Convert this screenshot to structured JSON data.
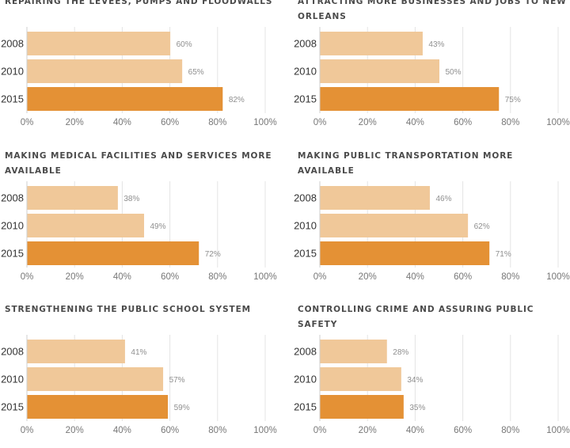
{
  "chart_data": [
    {
      "type": "bar",
      "orientation": "horizontal",
      "title": "REPAIRING THE LEVEES, PUMPS AND FLOODWALLS",
      "categories": [
        "2008",
        "2010",
        "2015"
      ],
      "values": [
        60,
        65,
        82
      ],
      "value_labels": [
        "60%",
        "65%",
        "82%"
      ],
      "xlim": [
        0,
        100
      ],
      "xticks": [
        "0%",
        "20%",
        "40%",
        "60%",
        "80%",
        "100%"
      ],
      "grid": true,
      "colors": [
        "#f0c899",
        "#f0c899",
        "#e49135"
      ]
    },
    {
      "type": "bar",
      "orientation": "horizontal",
      "title": "ATTRACTING MORE BUSINESSES AND JOBS TO NEW ORLEANS",
      "categories": [
        "2008",
        "2010",
        "2015"
      ],
      "values": [
        43,
        50,
        75
      ],
      "value_labels": [
        "43%",
        "50%",
        "75%"
      ],
      "xlim": [
        0,
        100
      ],
      "xticks": [
        "0%",
        "20%",
        "40%",
        "60%",
        "80%",
        "100%"
      ],
      "grid": true,
      "colors": [
        "#f0c899",
        "#f0c899",
        "#e49135"
      ]
    },
    {
      "type": "bar",
      "orientation": "horizontal",
      "title": "MAKING MEDICAL FACILITIES AND SERVICES MORE AVAILABLE",
      "categories": [
        "2008",
        "2010",
        "2015"
      ],
      "values": [
        38,
        49,
        72
      ],
      "value_labels": [
        "38%",
        "49%",
        "72%"
      ],
      "xlim": [
        0,
        100
      ],
      "xticks": [
        "0%",
        "20%",
        "40%",
        "60%",
        "80%",
        "100%"
      ],
      "grid": true,
      "colors": [
        "#f0c899",
        "#f0c899",
        "#e49135"
      ]
    },
    {
      "type": "bar",
      "orientation": "horizontal",
      "title": "MAKING PUBLIC TRANSPORTATION MORE AVAILABLE",
      "categories": [
        "2008",
        "2010",
        "2015"
      ],
      "values": [
        46,
        62,
        71
      ],
      "value_labels": [
        "46%",
        "62%",
        "71%"
      ],
      "xlim": [
        0,
        100
      ],
      "xticks": [
        "0%",
        "20%",
        "40%",
        "60%",
        "80%",
        "100%"
      ],
      "grid": true,
      "colors": [
        "#f0c899",
        "#f0c899",
        "#e49135"
      ]
    },
    {
      "type": "bar",
      "orientation": "horizontal",
      "title": "STRENGTHENING THE PUBLIC SCHOOL SYSTEM",
      "categories": [
        "2008",
        "2010",
        "2015"
      ],
      "values": [
        41,
        57,
        59
      ],
      "value_labels": [
        "41%",
        "57%",
        "59%"
      ],
      "xlim": [
        0,
        100
      ],
      "xticks": [
        "0%",
        "20%",
        "40%",
        "60%",
        "80%",
        "100%"
      ],
      "grid": true,
      "colors": [
        "#f0c899",
        "#f0c899",
        "#e49135"
      ]
    },
    {
      "type": "bar",
      "orientation": "horizontal",
      "title": "CONTROLLING CRIME AND ASSURING PUBLIC SAFETY",
      "categories": [
        "2008",
        "2010",
        "2015"
      ],
      "values": [
        28,
        34,
        35
      ],
      "value_labels": [
        "28%",
        "34%",
        "35%"
      ],
      "xlim": [
        0,
        100
      ],
      "xticks": [
        "0%",
        "20%",
        "40%",
        "60%",
        "80%",
        "100%"
      ],
      "grid": true,
      "colors": [
        "#f0c899",
        "#f0c899",
        "#e49135"
      ]
    }
  ]
}
